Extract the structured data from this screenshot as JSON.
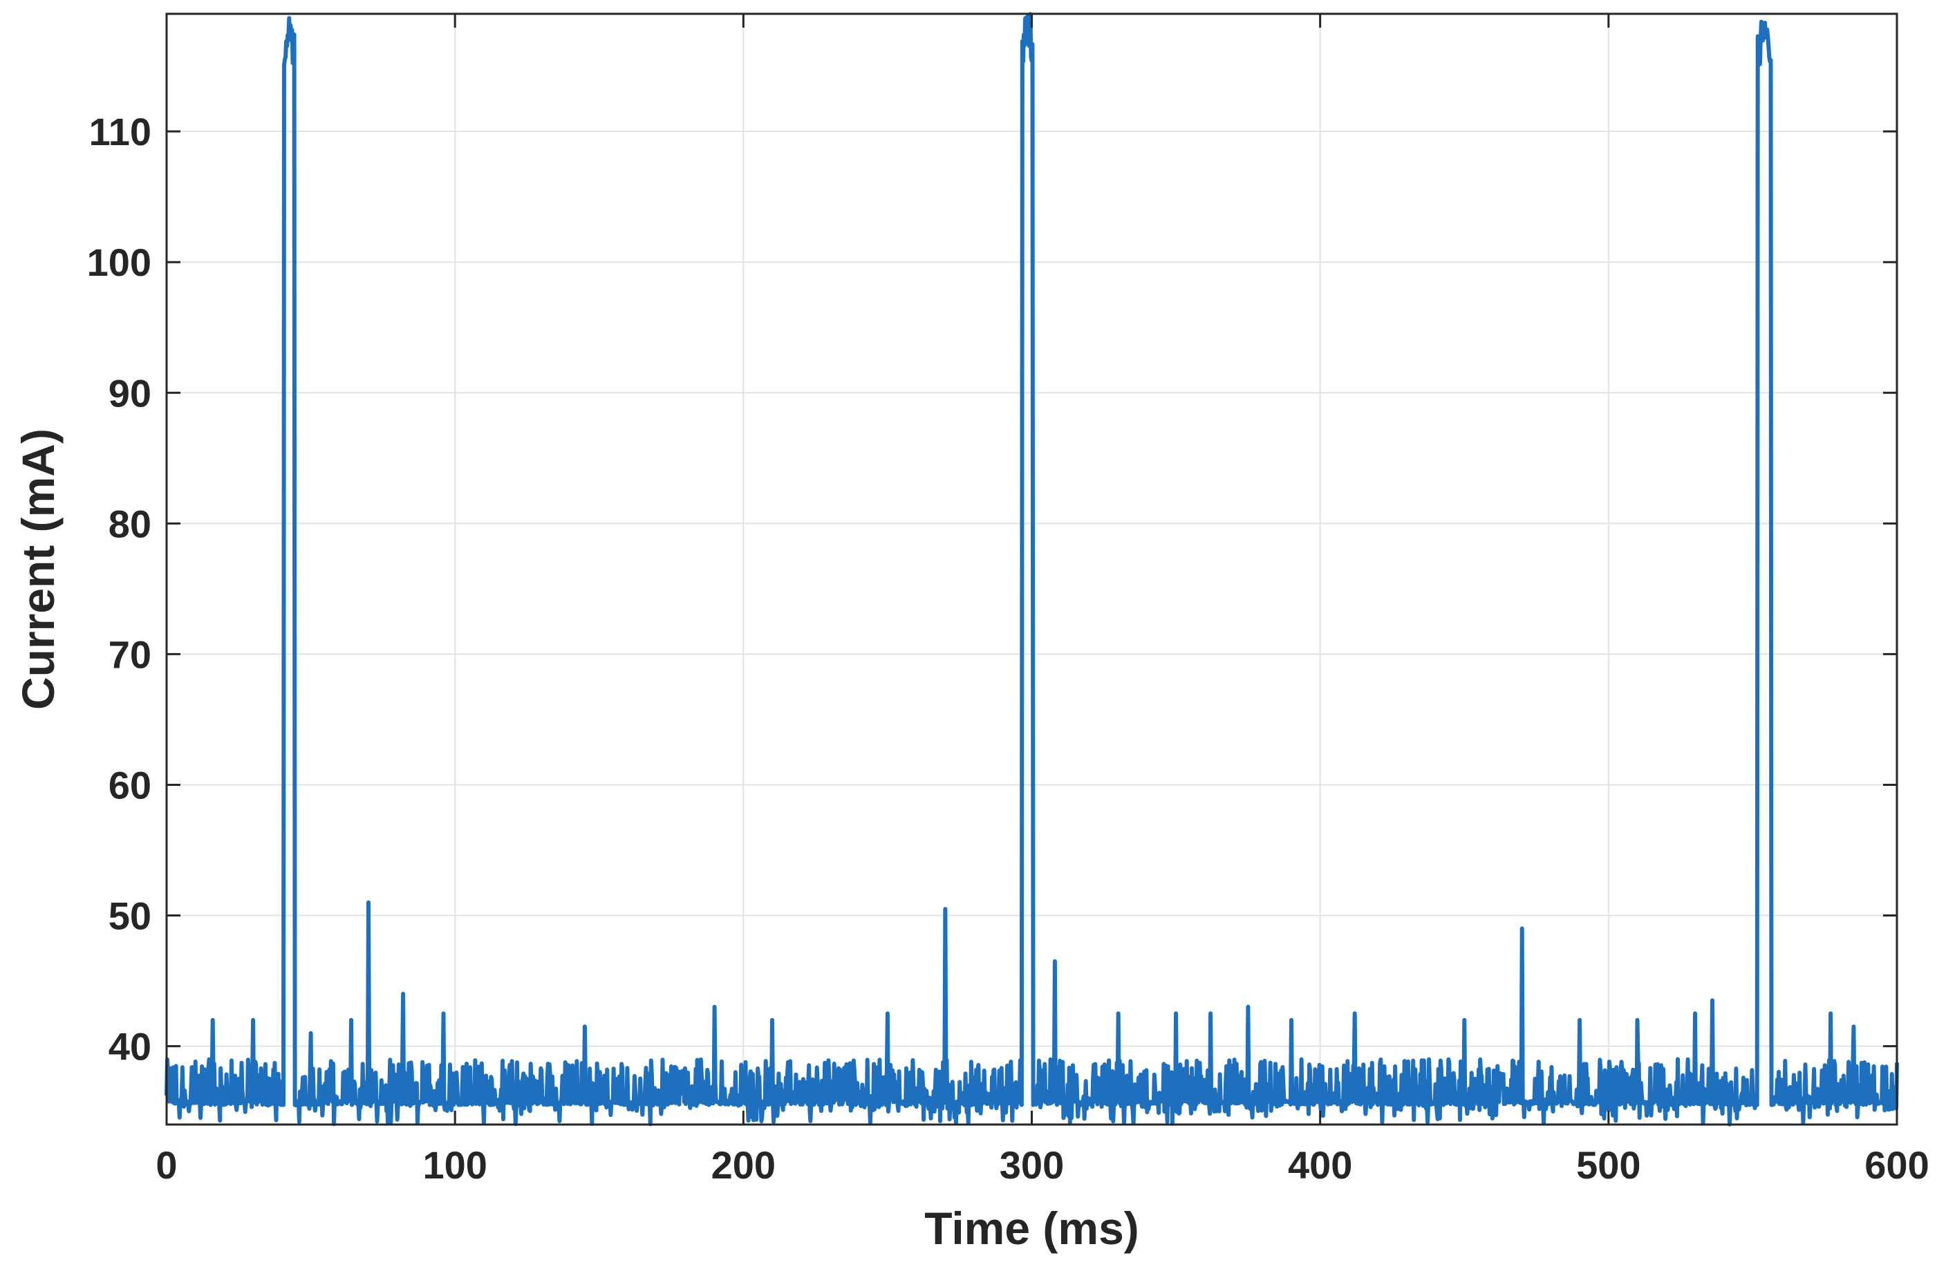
{
  "chart_data": {
    "type": "line",
    "title": "",
    "xlabel": "Time (ms)",
    "ylabel": "Current (mA)",
    "xlim": [
      0,
      600
    ],
    "ylim": [
      34,
      119
    ],
    "grid": true,
    "legend": "none",
    "xticks": [
      0,
      100,
      200,
      300,
      400,
      500,
      600
    ],
    "yticks": [
      40,
      50,
      60,
      70,
      80,
      90,
      100,
      110
    ],
    "color": "#1f6fbf",
    "baseline_mA": 35.5,
    "noise_band_mA": [
      35,
      39
    ],
    "pulses": [
      {
        "start_ms": 41,
        "end_ms": 44,
        "peak_mA": 119
      },
      {
        "start_ms": 297,
        "end_ms": 300,
        "peak_mA": 119
      },
      {
        "start_ms": 552,
        "end_ms": 556,
        "peak_mA": 119
      }
    ],
    "spikes": [
      {
        "x": 16,
        "y": 42
      },
      {
        "x": 30,
        "y": 42
      },
      {
        "x": 50,
        "y": 41
      },
      {
        "x": 64,
        "y": 42
      },
      {
        "x": 70,
        "y": 51
      },
      {
        "x": 82,
        "y": 44
      },
      {
        "x": 96,
        "y": 42.5
      },
      {
        "x": 145,
        "y": 41.5
      },
      {
        "x": 190,
        "y": 43
      },
      {
        "x": 210,
        "y": 42
      },
      {
        "x": 250,
        "y": 42.5
      },
      {
        "x": 270,
        "y": 50.5
      },
      {
        "x": 308,
        "y": 46.5
      },
      {
        "x": 330,
        "y": 42.5
      },
      {
        "x": 350,
        "y": 42.5
      },
      {
        "x": 362,
        "y": 42.5
      },
      {
        "x": 375,
        "y": 43
      },
      {
        "x": 390,
        "y": 42
      },
      {
        "x": 412,
        "y": 42.5
      },
      {
        "x": 450,
        "y": 42
      },
      {
        "x": 470,
        "y": 49
      },
      {
        "x": 490,
        "y": 42
      },
      {
        "x": 510,
        "y": 42
      },
      {
        "x": 530,
        "y": 42.5
      },
      {
        "x": 536,
        "y": 43.5
      },
      {
        "x": 577,
        "y": 42.5
      },
      {
        "x": 585,
        "y": 41.5
      }
    ]
  }
}
